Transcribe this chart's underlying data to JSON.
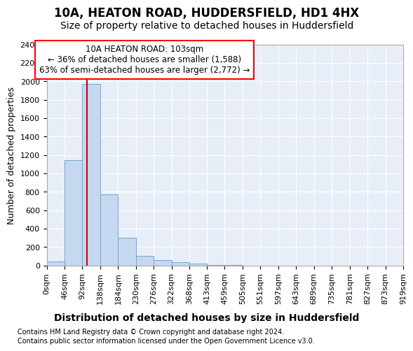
{
  "title1": "10A, HEATON ROAD, HUDDERSFIELD, HD1 4HX",
  "title2": "Size of property relative to detached houses in Huddersfield",
  "xlabel": "Distribution of detached houses by size in Huddersfield",
  "ylabel": "Number of detached properties",
  "footnote1": "Contains HM Land Registry data © Crown copyright and database right 2024.",
  "footnote2": "Contains public sector information licensed under the Open Government Licence v3.0.",
  "property_size": 103,
  "annotation_title": "10A HEATON ROAD: 103sqm",
  "annotation_line1": "← 36% of detached houses are smaller (1,588)",
  "annotation_line2": "63% of semi-detached houses are larger (2,772) →",
  "bin_edges": [
    0,
    46,
    92,
    138,
    184,
    230,
    276,
    322,
    368,
    413,
    459,
    505,
    551,
    597,
    643,
    689,
    735,
    781,
    827,
    873,
    919
  ],
  "bar_heights": [
    40,
    1140,
    1970,
    775,
    300,
    105,
    55,
    35,
    20,
    5,
    2,
    1,
    0,
    0,
    0,
    0,
    0,
    0,
    0,
    0
  ],
  "bar_color": "#c5d8f0",
  "bar_edge_color": "#6aaad4",
  "line_color": "#cc0000",
  "ylim": [
    0,
    2400
  ],
  "yticks": [
    0,
    200,
    400,
    600,
    800,
    1000,
    1200,
    1400,
    1600,
    1800,
    2000,
    2200,
    2400
  ],
  "background_color": "#ffffff",
  "plot_bg_color": "#e8eef8",
  "grid_color": "#ffffff",
  "title1_fontsize": 12,
  "title2_fontsize": 10,
  "xlabel_fontsize": 10,
  "ylabel_fontsize": 9,
  "tick_fontsize": 8,
  "footnote_fontsize": 7
}
